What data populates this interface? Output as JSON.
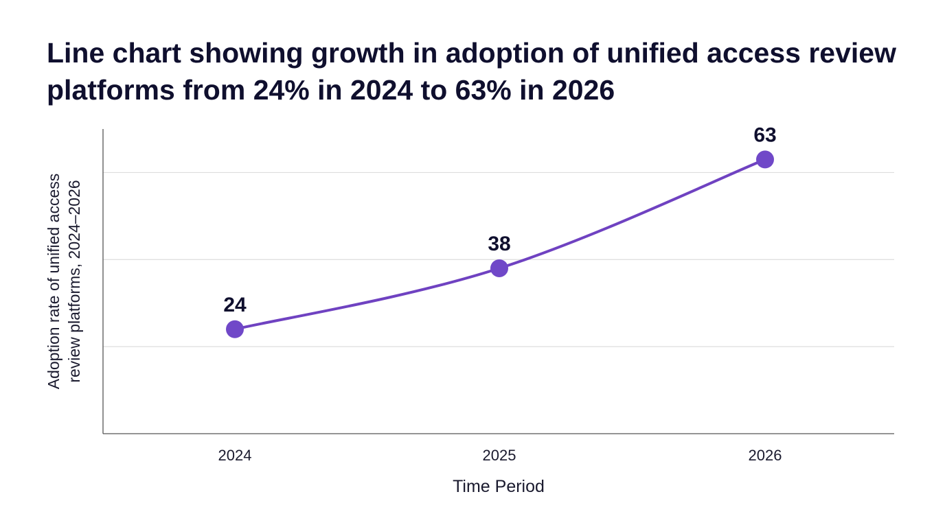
{
  "chart_data": {
    "type": "line",
    "title": "Line chart showing growth in adoption of unified access review platforms from 24% in 2024 to 63% in 2026",
    "xlabel": "Time Period",
    "ylabel": "Adoption rate of unified access review platforms, 2024–2026",
    "ylabel_lines": [
      "Adoption rate of unified access",
      "review platforms, 2024–2026"
    ],
    "categories": [
      "2024",
      "2025",
      "2026"
    ],
    "series": [
      {
        "values": [
          24,
          38,
          63
        ]
      }
    ],
    "data_labels": [
      "24",
      "38",
      "63"
    ],
    "ylim": [
      0,
      70
    ],
    "gridlines": [
      20,
      40,
      60
    ],
    "grid": true,
    "legend": "none",
    "colors": {
      "line": "#6f42c1",
      "marker": "#7048c8",
      "grid": "#dddddd",
      "axis": "#555555",
      "text": "#0f0f2e"
    }
  }
}
